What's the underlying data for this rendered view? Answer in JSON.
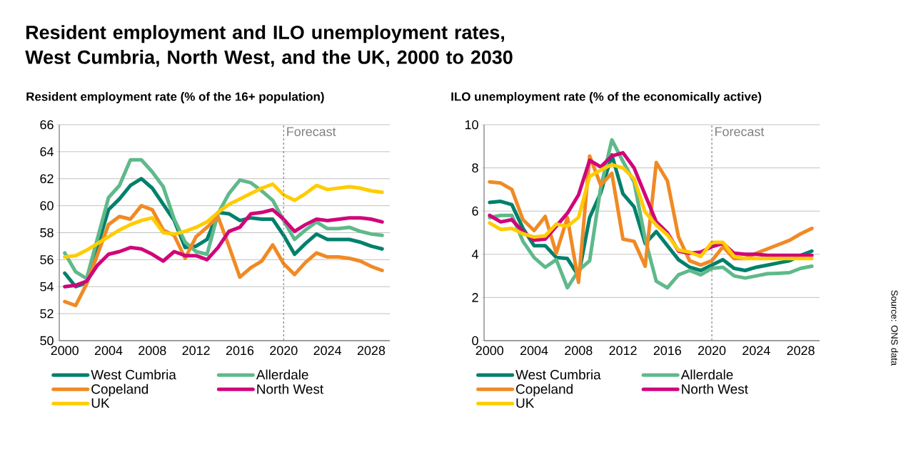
{
  "chart_data": [
    {
      "type": "line",
      "title": "Resident employment and ILO unemployment rates, West Cumbria, North West, and the UK, 2000 to 2030",
      "subtitle": "Resident employment rate (% of the 16+ population)",
      "x": [
        2000,
        2001,
        2002,
        2003,
        2004,
        2005,
        2006,
        2007,
        2008,
        2009,
        2010,
        2011,
        2012,
        2013,
        2014,
        2015,
        2016,
        2017,
        2018,
        2019,
        2020,
        2021,
        2022,
        2023,
        2024,
        2025,
        2026,
        2027,
        2028,
        2029
      ],
      "series": [
        {
          "name": "West Cumbria",
          "color": "#00806b",
          "values": [
            55.0,
            54.0,
            54.3,
            57.0,
            59.7,
            60.5,
            61.5,
            62.0,
            61.3,
            60.1,
            58.9,
            56.9,
            57.0,
            57.5,
            59.5,
            59.4,
            58.9,
            59.1,
            59.0,
            59.0,
            57.8,
            56.4,
            57.2,
            57.9,
            57.5,
            57.5,
            57.5,
            57.3,
            57.0,
            56.8
          ]
        },
        {
          "name": "Allerdale",
          "color": "#5fb98a",
          "values": [
            56.5,
            55.1,
            54.6,
            57.6,
            60.6,
            61.5,
            63.4,
            63.4,
            62.5,
            61.4,
            59.0,
            57.3,
            56.6,
            56.4,
            59.4,
            60.9,
            61.9,
            61.7,
            61.1,
            60.4,
            58.9,
            57.5,
            58.2,
            58.8,
            58.3,
            58.3,
            58.4,
            58.1,
            57.9,
            57.8
          ]
        },
        {
          "name": "Copeland",
          "color": "#f08a24",
          "values": [
            52.9,
            52.6,
            54.2,
            56.4,
            58.6,
            59.2,
            59.0,
            60.0,
            59.7,
            58.2,
            57.8,
            56.1,
            57.7,
            58.4,
            59.2,
            57.0,
            54.7,
            55.4,
            55.9,
            57.1,
            55.7,
            54.9,
            55.8,
            56.5,
            56.2,
            56.2,
            56.1,
            55.9,
            55.5,
            55.2
          ]
        },
        {
          "name": "North West",
          "color": "#d0067a",
          "values": [
            54.0,
            54.1,
            54.4,
            55.6,
            56.4,
            56.6,
            56.9,
            56.8,
            56.4,
            55.9,
            56.6,
            56.3,
            56.3,
            56.0,
            56.9,
            58.1,
            58.4,
            59.4,
            59.5,
            59.7,
            59.0,
            58.1,
            58.6,
            59.0,
            58.9,
            59.0,
            59.1,
            59.1,
            59.0,
            58.8
          ]
        },
        {
          "name": "UK",
          "color": "#ffcc00",
          "values": [
            56.2,
            56.3,
            56.7,
            57.2,
            57.7,
            58.2,
            58.6,
            58.9,
            59.1,
            58.0,
            57.9,
            58.1,
            58.4,
            58.8,
            59.5,
            60.1,
            60.5,
            60.9,
            61.3,
            61.6,
            60.8,
            60.4,
            60.9,
            61.5,
            61.2,
            61.3,
            61.4,
            61.3,
            61.1,
            61.0
          ]
        }
      ],
      "xlim": [
        1999.5,
        2029.7
      ],
      "xticks": [
        2000,
        2004,
        2008,
        2012,
        2016,
        2020,
        2024,
        2028
      ],
      "ylim": [
        50,
        66
      ],
      "yticks": [
        50,
        52,
        54,
        56,
        58,
        60,
        62,
        64,
        66
      ],
      "grid": "y",
      "legend": "bottom",
      "ref_lines": [
        {
          "axis": "x",
          "value": 2020,
          "label": "Forecast",
          "color": "#808080",
          "line_style": "dashed"
        }
      ]
    },
    {
      "type": "line",
      "subtitle": "ILO unemployment rate (% of the economically active)",
      "x": [
        2000,
        2001,
        2002,
        2003,
        2004,
        2005,
        2006,
        2007,
        2008,
        2009,
        2010,
        2011,
        2012,
        2013,
        2014,
        2015,
        2016,
        2017,
        2018,
        2019,
        2020,
        2021,
        2022,
        2023,
        2024,
        2025,
        2026,
        2027,
        2028,
        2029
      ],
      "series": [
        {
          "name": "West Cumbria",
          "color": "#00806b",
          "values": [
            6.4,
            6.45,
            6.3,
            5.2,
            4.4,
            4.4,
            3.85,
            3.8,
            3.0,
            5.7,
            6.85,
            8.6,
            6.8,
            6.2,
            4.5,
            5.05,
            4.4,
            3.75,
            3.4,
            3.25,
            3.5,
            3.75,
            3.35,
            3.25,
            3.4,
            3.5,
            3.6,
            3.7,
            3.95,
            4.15
          ]
        },
        {
          "name": "Allerdale",
          "color": "#5fb98a",
          "values": [
            5.7,
            5.8,
            5.8,
            4.6,
            3.85,
            3.4,
            3.75,
            2.45,
            3.25,
            3.7,
            7.1,
            9.3,
            8.3,
            7.35,
            4.7,
            2.75,
            2.45,
            3.05,
            3.25,
            3.05,
            3.35,
            3.4,
            3.0,
            2.9,
            3.0,
            3.1,
            3.12,
            3.15,
            3.35,
            3.45
          ]
        },
        {
          "name": "Copeland",
          "color": "#f08a24",
          "values": [
            7.35,
            7.3,
            7.0,
            5.6,
            5.1,
            5.75,
            4.05,
            5.7,
            2.7,
            8.55,
            7.2,
            7.75,
            4.7,
            4.6,
            3.45,
            8.25,
            7.4,
            4.8,
            3.7,
            3.5,
            3.7,
            4.35,
            3.8,
            3.8,
            4.05,
            4.25,
            4.45,
            4.65,
            4.95,
            5.2
          ]
        },
        {
          "name": "North West",
          "color": "#d0067a",
          "values": [
            5.8,
            5.5,
            5.6,
            5.05,
            4.65,
            4.7,
            5.3,
            5.9,
            6.75,
            8.35,
            8.05,
            8.55,
            8.7,
            8.0,
            6.75,
            5.5,
            5.0,
            4.15,
            4.05,
            4.1,
            4.35,
            4.5,
            4.05,
            4.0,
            4.0,
            3.95,
            3.95,
            3.95,
            3.95,
            3.95
          ]
        },
        {
          "name": "UK",
          "color": "#ffcc00",
          "values": [
            5.45,
            5.15,
            5.2,
            4.95,
            4.8,
            4.85,
            5.4,
            5.3,
            5.7,
            7.6,
            7.9,
            8.15,
            8.0,
            7.5,
            5.95,
            5.35,
            4.9,
            4.2,
            4.1,
            3.9,
            4.55,
            4.55,
            3.9,
            3.8,
            3.8,
            3.8,
            3.8,
            3.8,
            3.8,
            3.8
          ]
        }
      ],
      "xlim": [
        1999.5,
        2029.7
      ],
      "xticks": [
        2000,
        2004,
        2008,
        2012,
        2016,
        2020,
        2024,
        2028
      ],
      "ylim": [
        0,
        10
      ],
      "yticks": [
        0,
        2,
        4,
        6,
        8,
        10
      ],
      "grid": "y",
      "legend": "bottom",
      "ref_lines": [
        {
          "axis": "x",
          "value": 2020,
          "label": "Forecast",
          "color": "#808080",
          "line_style": "dashed"
        }
      ],
      "annotations": [
        "Source: ONS data"
      ]
    }
  ]
}
